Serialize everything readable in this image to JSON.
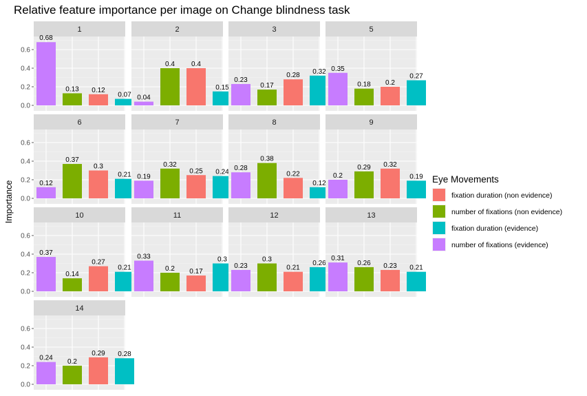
{
  "chart_data": {
    "type": "bar",
    "title": "Relative feature importance per image on Change blindness task",
    "ylabel": "Importance",
    "xlabel": "",
    "ylim": [
      0,
      0.8
    ],
    "yticks": [
      "0.0",
      "0.2",
      "0.4",
      "0.6"
    ],
    "grid": true,
    "legend": {
      "title": "Eye Movements",
      "placement": "right",
      "entries": [
        {
          "label": "fixation duration (non evidence)",
          "color": "#F8766D"
        },
        {
          "label": "number of fixations (non evidence)",
          "color": "#7CAE00"
        },
        {
          "label": "fixation duration (evidence)",
          "color": "#00BFC4"
        },
        {
          "label": "number of fixations (evidence)",
          "color": "#C77CFF"
        }
      ]
    },
    "bar_order": [
      {
        "series": "number of fixations (evidence)",
        "color": "#C77CFF"
      },
      {
        "series": "number of fixations (non evidence)",
        "color": "#7CAE00"
      },
      {
        "series": "fixation duration (non evidence)",
        "color": "#F8766D"
      },
      {
        "series": "fixation duration (evidence)",
        "color": "#00BFC4"
      }
    ],
    "panels": [
      {
        "label": "1",
        "values": [
          0.68,
          0.13,
          0.12,
          0.07
        ],
        "labels": [
          "0.68",
          "0.13",
          "0.12",
          "0.07"
        ]
      },
      {
        "label": "2",
        "values": [
          0.04,
          0.4,
          0.4,
          0.15
        ],
        "labels": [
          "0.04",
          "0.4",
          "0.4",
          "0.15"
        ]
      },
      {
        "label": "3",
        "values": [
          0.23,
          0.17,
          0.28,
          0.32
        ],
        "labels": [
          "0.23",
          "0.17",
          "0.28",
          "0.32"
        ]
      },
      {
        "label": "5",
        "values": [
          0.35,
          0.18,
          0.2,
          0.27
        ],
        "labels": [
          "0.35",
          "0.18",
          "0.2",
          "0.27"
        ]
      },
      {
        "label": "6",
        "values": [
          0.12,
          0.37,
          0.3,
          0.21
        ],
        "labels": [
          "0.12",
          "0.37",
          "0.3",
          "0.21"
        ]
      },
      {
        "label": "7",
        "values": [
          0.19,
          0.32,
          0.25,
          0.24
        ],
        "labels": [
          "0.19",
          "0.32",
          "0.25",
          "0.24"
        ]
      },
      {
        "label": "8",
        "values": [
          0.28,
          0.38,
          0.22,
          0.12
        ],
        "labels": [
          "0.28",
          "0.38",
          "0.22",
          "0.12"
        ]
      },
      {
        "label": "9",
        "values": [
          0.2,
          0.29,
          0.32,
          0.19
        ],
        "labels": [
          "0.2",
          "0.29",
          "0.32",
          "0.19"
        ]
      },
      {
        "label": "10",
        "values": [
          0.37,
          0.14,
          0.27,
          0.21
        ],
        "labels": [
          "0.37",
          "0.14",
          "0.27",
          "0.21"
        ]
      },
      {
        "label": "11",
        "values": [
          0.33,
          0.2,
          0.17,
          0.3
        ],
        "labels": [
          "0.33",
          "0.2",
          "0.17",
          "0.3"
        ]
      },
      {
        "label": "12",
        "values": [
          0.23,
          0.3,
          0.21,
          0.26
        ],
        "labels": [
          "0.23",
          "0.3",
          "0.21",
          "0.26"
        ]
      },
      {
        "label": "13",
        "values": [
          0.31,
          0.26,
          0.23,
          0.21
        ],
        "labels": [
          "0.31",
          "0.26",
          "0.23",
          "0.21"
        ]
      },
      {
        "label": "14",
        "values": [
          0.24,
          0.2,
          0.29,
          0.28
        ],
        "labels": [
          "0.24",
          "0.2",
          "0.29",
          "0.28"
        ]
      }
    ]
  }
}
